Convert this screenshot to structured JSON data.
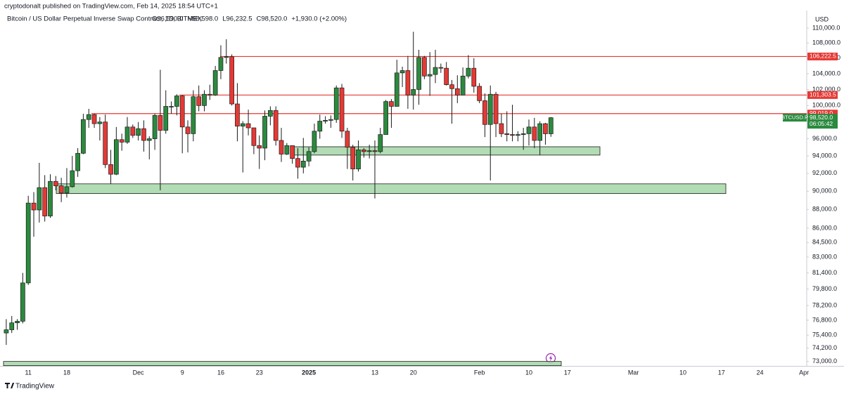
{
  "chart_data": {
    "type": "candlestick",
    "attribution": "cryptodonalt published on TradingView.com, Feb 14, 2025 18:54 UTC+1",
    "title": "Bitcoin / US Dollar Perpetual Inverse Swap Contract, 1D, BITMEX",
    "ohlc_legend": [
      "O96,590.0",
      "H98,598.0",
      "L96,232.5",
      "C98,520.0",
      "+1,930.0 (+2.00%)"
    ],
    "currency": "USD",
    "symbol": "BTCUSD.P",
    "countdown": "06:05:42",
    "footer": "TradingView",
    "log": true,
    "up_color": "#2b8a3e",
    "down_color": "#e53935",
    "level_color": "#e53935",
    "zone_color": "#a5d6a7",
    "ylim": [
      72600,
      112400
    ],
    "yticks": [
      {
        "value": 110000,
        "label": "110,000.0"
      },
      {
        "value": 108000,
        "label": "108,000.0"
      },
      {
        "value": 106000,
        "label": "106,000.0"
      },
      {
        "value": 104000,
        "label": "104,000.0"
      },
      {
        "value": 102000,
        "label": "102,000.0"
      },
      {
        "value": 100000,
        "label": "100,000.0"
      },
      {
        "value": 96000,
        "label": "96,000.0"
      },
      {
        "value": 94000,
        "label": "94,000.0"
      },
      {
        "value": 92000,
        "label": "92,000.0"
      },
      {
        "value": 90000,
        "label": "90,000.0"
      },
      {
        "value": 88000,
        "label": "88,000.0"
      },
      {
        "value": 86000,
        "label": "86,000.0"
      },
      {
        "value": 84500,
        "label": "84,500.0"
      },
      {
        "value": 83000,
        "label": "83,000.0"
      },
      {
        "value": 81400,
        "label": "81,400.0"
      },
      {
        "value": 79800,
        "label": "79,800.0"
      },
      {
        "value": 78200,
        "label": "78,200.0"
      },
      {
        "value": 76800,
        "label": "76,800.0"
      },
      {
        "value": 75400,
        "label": "75,400.0"
      },
      {
        "value": 74200,
        "label": "74,200.0"
      },
      {
        "value": 73000,
        "label": "73,000.0"
      }
    ],
    "levels": [
      {
        "value": 106222.5,
        "label": "106,222.5"
      },
      {
        "value": 101303.5,
        "label": "101,303.5"
      },
      {
        "value": 99019,
        "label": "99,019.0"
      }
    ],
    "last_price": {
      "value": 98520,
      "label": "98,520.0"
    },
    "zones": [
      {
        "low": 94090,
        "high": 95060
      },
      {
        "low": 89740,
        "high": 90820
      },
      {
        "low": 72623,
        "high": 73000
      }
    ],
    "categories": [
      null,
      null,
      null,
      null,
      "11",
      null,
      null,
      null,
      null,
      null,
      null,
      "18",
      null,
      null,
      null,
      null,
      null,
      null,
      null,
      null,
      null,
      null,
      null,
      null,
      "Dec",
      null,
      null,
      null,
      null,
      null,
      null,
      null,
      "9",
      null,
      null,
      null,
      null,
      null,
      null,
      "16",
      null,
      null,
      null,
      null,
      null,
      null,
      "23",
      null,
      null,
      null,
      null,
      null,
      null,
      null,
      null,
      "2025",
      null,
      null,
      null,
      null,
      null,
      null,
      null,
      null,
      null,
      null,
      null,
      "13",
      null,
      null,
      null,
      null,
      null,
      null,
      "20",
      null,
      null,
      null,
      null,
      null,
      null,
      null,
      null,
      null,
      null,
      null,
      "Feb",
      null,
      null,
      null,
      null,
      null,
      null,
      null,
      null,
      "10",
      null,
      null,
      null,
      null,
      null,
      null,
      "17",
      null,
      null,
      null,
      null,
      null,
      null,
      null,
      null,
      null,
      null,
      null,
      "Mar",
      null,
      null,
      null,
      null,
      null,
      null,
      null,
      null,
      "10",
      null,
      null,
      null,
      null,
      null,
      null,
      "17",
      null,
      null,
      null,
      null,
      null,
      null,
      "24",
      null,
      null,
      null,
      null,
      null,
      null,
      null,
      "Apr"
    ],
    "open": [
      75600,
      75900,
      76550,
      76700,
      80400,
      88700,
      87950,
      90400,
      87300,
      91100,
      90600,
      89800,
      90500,
      92300,
      94300,
      98300,
      98900,
      97800,
      98000,
      93000,
      91900,
      95900,
      95600,
      97400,
      96400,
      97200,
      95800,
      96000,
      98800,
      97000,
      99900,
      99900,
      101200,
      97400,
      96600,
      101100,
      100000,
      101400,
      101300,
      104400,
      106100,
      106200,
      100200,
      97500,
      97800,
      97300,
      95200,
      94900,
      98700,
      99400,
      95800,
      94200,
      95200,
      93700,
      92700,
      93400,
      94500,
      96900,
      98100,
      98200,
      98300,
      102200,
      96900,
      95000,
      92500,
      94700,
      94500,
      94600,
      94500,
      96500,
      100500,
      99900,
      104100,
      104400,
      101300,
      102000,
      106100,
      103700,
      103900,
      104800,
      104700,
      102600,
      102100,
      101300,
      103700,
      104700,
      102400,
      100600,
      97700,
      101400,
      97800,
      96600,
      96500,
      96400,
      96500,
      96600,
      97400,
      95800,
      97800,
      96590,
      null,
      null,
      null,
      null,
      null,
      null,
      null,
      null,
      null,
      null,
      null,
      null,
      null,
      null,
      null,
      null,
      null,
      null,
      null,
      null,
      null,
      null,
      null,
      null,
      null,
      null,
      null,
      null,
      null,
      null,
      null,
      null,
      null,
      null,
      null,
      null,
      null,
      null,
      null,
      null,
      null,
      null,
      null,
      null,
      null,
      null
    ],
    "high": [
      76900,
      77200,
      76900,
      81400,
      89500,
      89900,
      93200,
      91800,
      91900,
      91700,
      91500,
      92600,
      94000,
      94900,
      99000,
      99600,
      99000,
      98600,
      98900,
      94700,
      97400,
      96600,
      98600,
      97700,
      98000,
      98200,
      96300,
      99000,
      104500,
      101900,
      100500,
      101400,
      101300,
      98200,
      101900,
      102500,
      101900,
      102600,
      105000,
      107700,
      108500,
      106500,
      102800,
      98100,
      99500,
      97300,
      96400,
      99400,
      99900,
      99900,
      97300,
      95500,
      95200,
      94900,
      96100,
      95000,
      97800,
      98900,
      98700,
      98800,
      102500,
      102700,
      97300,
      95300,
      95800,
      94900,
      95300,
      95800,
      97300,
      100700,
      100800,
      105800,
      104900,
      106300,
      109500,
      107100,
      106300,
      106800,
      107100,
      105300,
      105500,
      103200,
      103800,
      104800,
      106400,
      106000,
      102800,
      101500,
      102500,
      101700,
      99000,
      99300,
      100100,
      96900,
      97300,
      98300,
      98500,
      98100,
      97900,
      98598,
      null,
      null,
      null,
      null,
      null,
      null,
      null,
      null,
      null,
      null,
      null,
      null,
      null,
      null,
      null,
      null,
      null,
      null,
      null,
      null,
      null,
      null,
      null,
      null,
      null,
      null,
      null,
      null,
      null,
      null,
      null,
      null,
      null,
      null,
      null,
      null,
      null,
      null,
      null,
      null,
      null,
      null,
      null,
      null,
      null,
      null
    ],
    "low": [
      74500,
      75600,
      75900,
      76500,
      80200,
      85100,
      86600,
      86700,
      87100,
      90100,
      88800,
      89300,
      90400,
      91600,
      94200,
      97300,
      97300,
      95800,
      92600,
      90800,
      91800,
      94600,
      95400,
      96100,
      95800,
      94500,
      93600,
      94700,
      90100,
      96600,
      99000,
      98800,
      94300,
      94400,
      95700,
      99300,
      99300,
      100700,
      101200,
      103300,
      105300,
      100000,
      95700,
      92100,
      96400,
      94200,
      92500,
      93500,
      97600,
      95200,
      93300,
      94100,
      93100,
      91400,
      92000,
      92800,
      94300,
      96000,
      97800,
      97300,
      97900,
      96100,
      92500,
      91200,
      92200,
      93800,
      93700,
      89200,
      94300,
      96500,
      97300,
      99900,
      102300,
      99600,
      99500,
      100100,
      103300,
      101200,
      102800,
      104100,
      102500,
      97800,
      100300,
      101300,
      103400,
      101600,
      100300,
      96200,
      91200,
      96200,
      96200,
      95700,
      95700,
      95700,
      94700,
      95200,
      94900,
      94100,
      95300,
      96232.5,
      null,
      null,
      null,
      null,
      null,
      null,
      null,
      null,
      null,
      null,
      null,
      null,
      null,
      null,
      null,
      null,
      null,
      null,
      null,
      null,
      null,
      null,
      null,
      null,
      null,
      null,
      null,
      null,
      null,
      null,
      null,
      null,
      null,
      null,
      null,
      null,
      null,
      null,
      null,
      null,
      null,
      null,
      null,
      null,
      null,
      null
    ],
    "close": [
      75900,
      76550,
      76700,
      80400,
      88700,
      87950,
      90400,
      87300,
      91100,
      90600,
      89800,
      90500,
      92300,
      94300,
      98300,
      98900,
      97800,
      98000,
      93000,
      91900,
      95900,
      95600,
      97400,
      96400,
      97200,
      95800,
      96000,
      98800,
      97000,
      99900,
      99900,
      101200,
      97400,
      96600,
      101100,
      100000,
      101400,
      101300,
      104400,
      106100,
      106200,
      100200,
      97500,
      97800,
      97300,
      95200,
      94900,
      98700,
      99400,
      95800,
      94200,
      95200,
      93700,
      92700,
      93400,
      94500,
      96900,
      98100,
      98200,
      98300,
      102200,
      96900,
      95000,
      92500,
      94700,
      94500,
      94600,
      94500,
      96500,
      100500,
      99900,
      104100,
      104400,
      101300,
      102000,
      106100,
      103700,
      103900,
      104800,
      104700,
      102600,
      102100,
      101300,
      103700,
      104700,
      102400,
      100600,
      97700,
      101400,
      97800,
      96600,
      96500,
      96400,
      96500,
      96600,
      97400,
      95800,
      97800,
      96590,
      98520,
      null,
      null,
      null,
      null,
      null,
      null,
      null,
      null,
      null,
      null,
      null,
      null,
      null,
      null,
      null,
      null,
      null,
      null,
      null,
      null,
      null,
      null,
      null,
      null,
      null,
      null,
      null,
      null,
      null,
      null,
      null,
      null,
      null,
      null,
      null,
      null,
      null,
      null,
      null,
      null,
      null,
      null,
      null,
      null,
      null,
      null
    ]
  }
}
